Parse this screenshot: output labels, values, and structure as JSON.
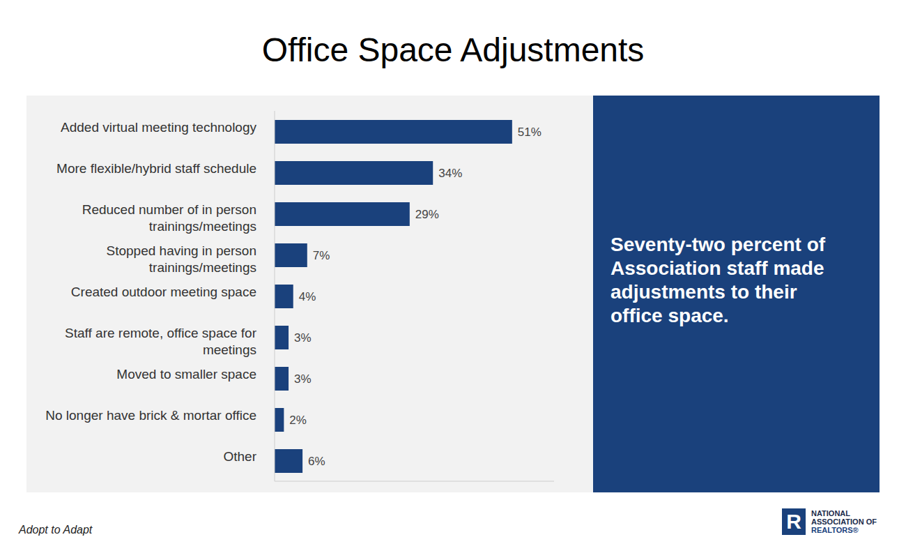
{
  "chart_data": {
    "type": "bar",
    "orientation": "horizontal",
    "title": "Office Space Adjustments",
    "categories": [
      "Added virtual meeting technology",
      "More flexible/hybrid staff schedule",
      "Reduced number of in person trainings/meetings",
      "Stopped having in person trainings/meetings",
      "Created outdoor meeting space",
      "Staff are remote, office space for meetings",
      "Moved to smaller space",
      "No longer have brick & mortar office",
      "Other"
    ],
    "values": [
      51,
      34,
      29,
      7,
      4,
      3,
      3,
      2,
      6
    ],
    "value_labels": [
      "51%",
      "34%",
      "29%",
      "7%",
      "4%",
      "3%",
      "3%",
      "2%",
      "6%"
    ],
    "data_labels": true,
    "color": "#1a417c",
    "xlim": [
      0,
      60
    ],
    "tick_labels": "y",
    "grid": false,
    "annotation": "Seventy-two percent of Association staff made adjustments to their office space.",
    "footer": "Adopt to Adapt",
    "logo": {
      "mark": "R",
      "text": [
        "NATIONAL",
        "ASSOCIATION OF",
        "REALTORS®"
      ]
    }
  }
}
